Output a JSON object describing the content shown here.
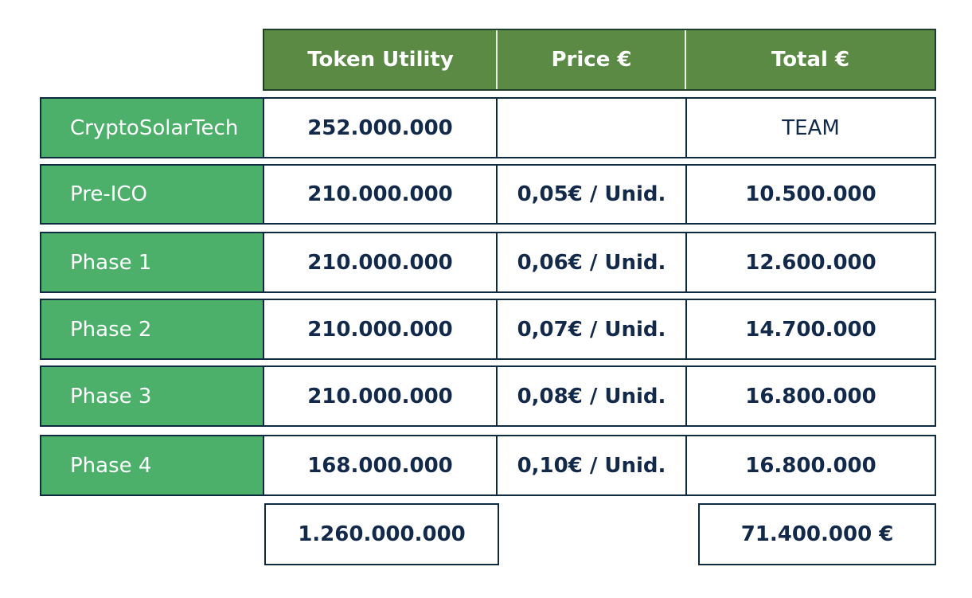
{
  "header": {
    "token_utility": "Token Utility",
    "price": "Price €",
    "total": "Total €"
  },
  "rows": [
    {
      "label": "CryptoSolarTech",
      "tokens": "252.000.000",
      "price": "",
      "total": "TEAM"
    },
    {
      "label": "Pre-ICO",
      "tokens": "210.000.000",
      "price": "0,05€ / Unid.",
      "total": "10.500.000"
    },
    {
      "label": "Phase 1",
      "tokens": "210.000.000",
      "price": "0,06€ / Unid.",
      "total": "12.600.000"
    },
    {
      "label": "Phase 2",
      "tokens": "210.000.000",
      "price": "0,07€ / Unid.",
      "total": "14.700.000"
    },
    {
      "label": "Phase 3",
      "tokens": "210.000.000",
      "price": "0,08€ / Unid.",
      "total": "16.800.000"
    },
    {
      "label": "Phase 4",
      "tokens": "168.000.000",
      "price": "0,10€ / Unid.",
      "total": "16.800.000"
    }
  ],
  "totals": {
    "tokens": "1.260.000.000",
    "amount": "71.400.000 €"
  },
  "colors": {
    "header_bg": "#5a8a43",
    "label_bg": "#4cb06b",
    "border": "#0f2b3f",
    "text_dark": "#12294a"
  }
}
